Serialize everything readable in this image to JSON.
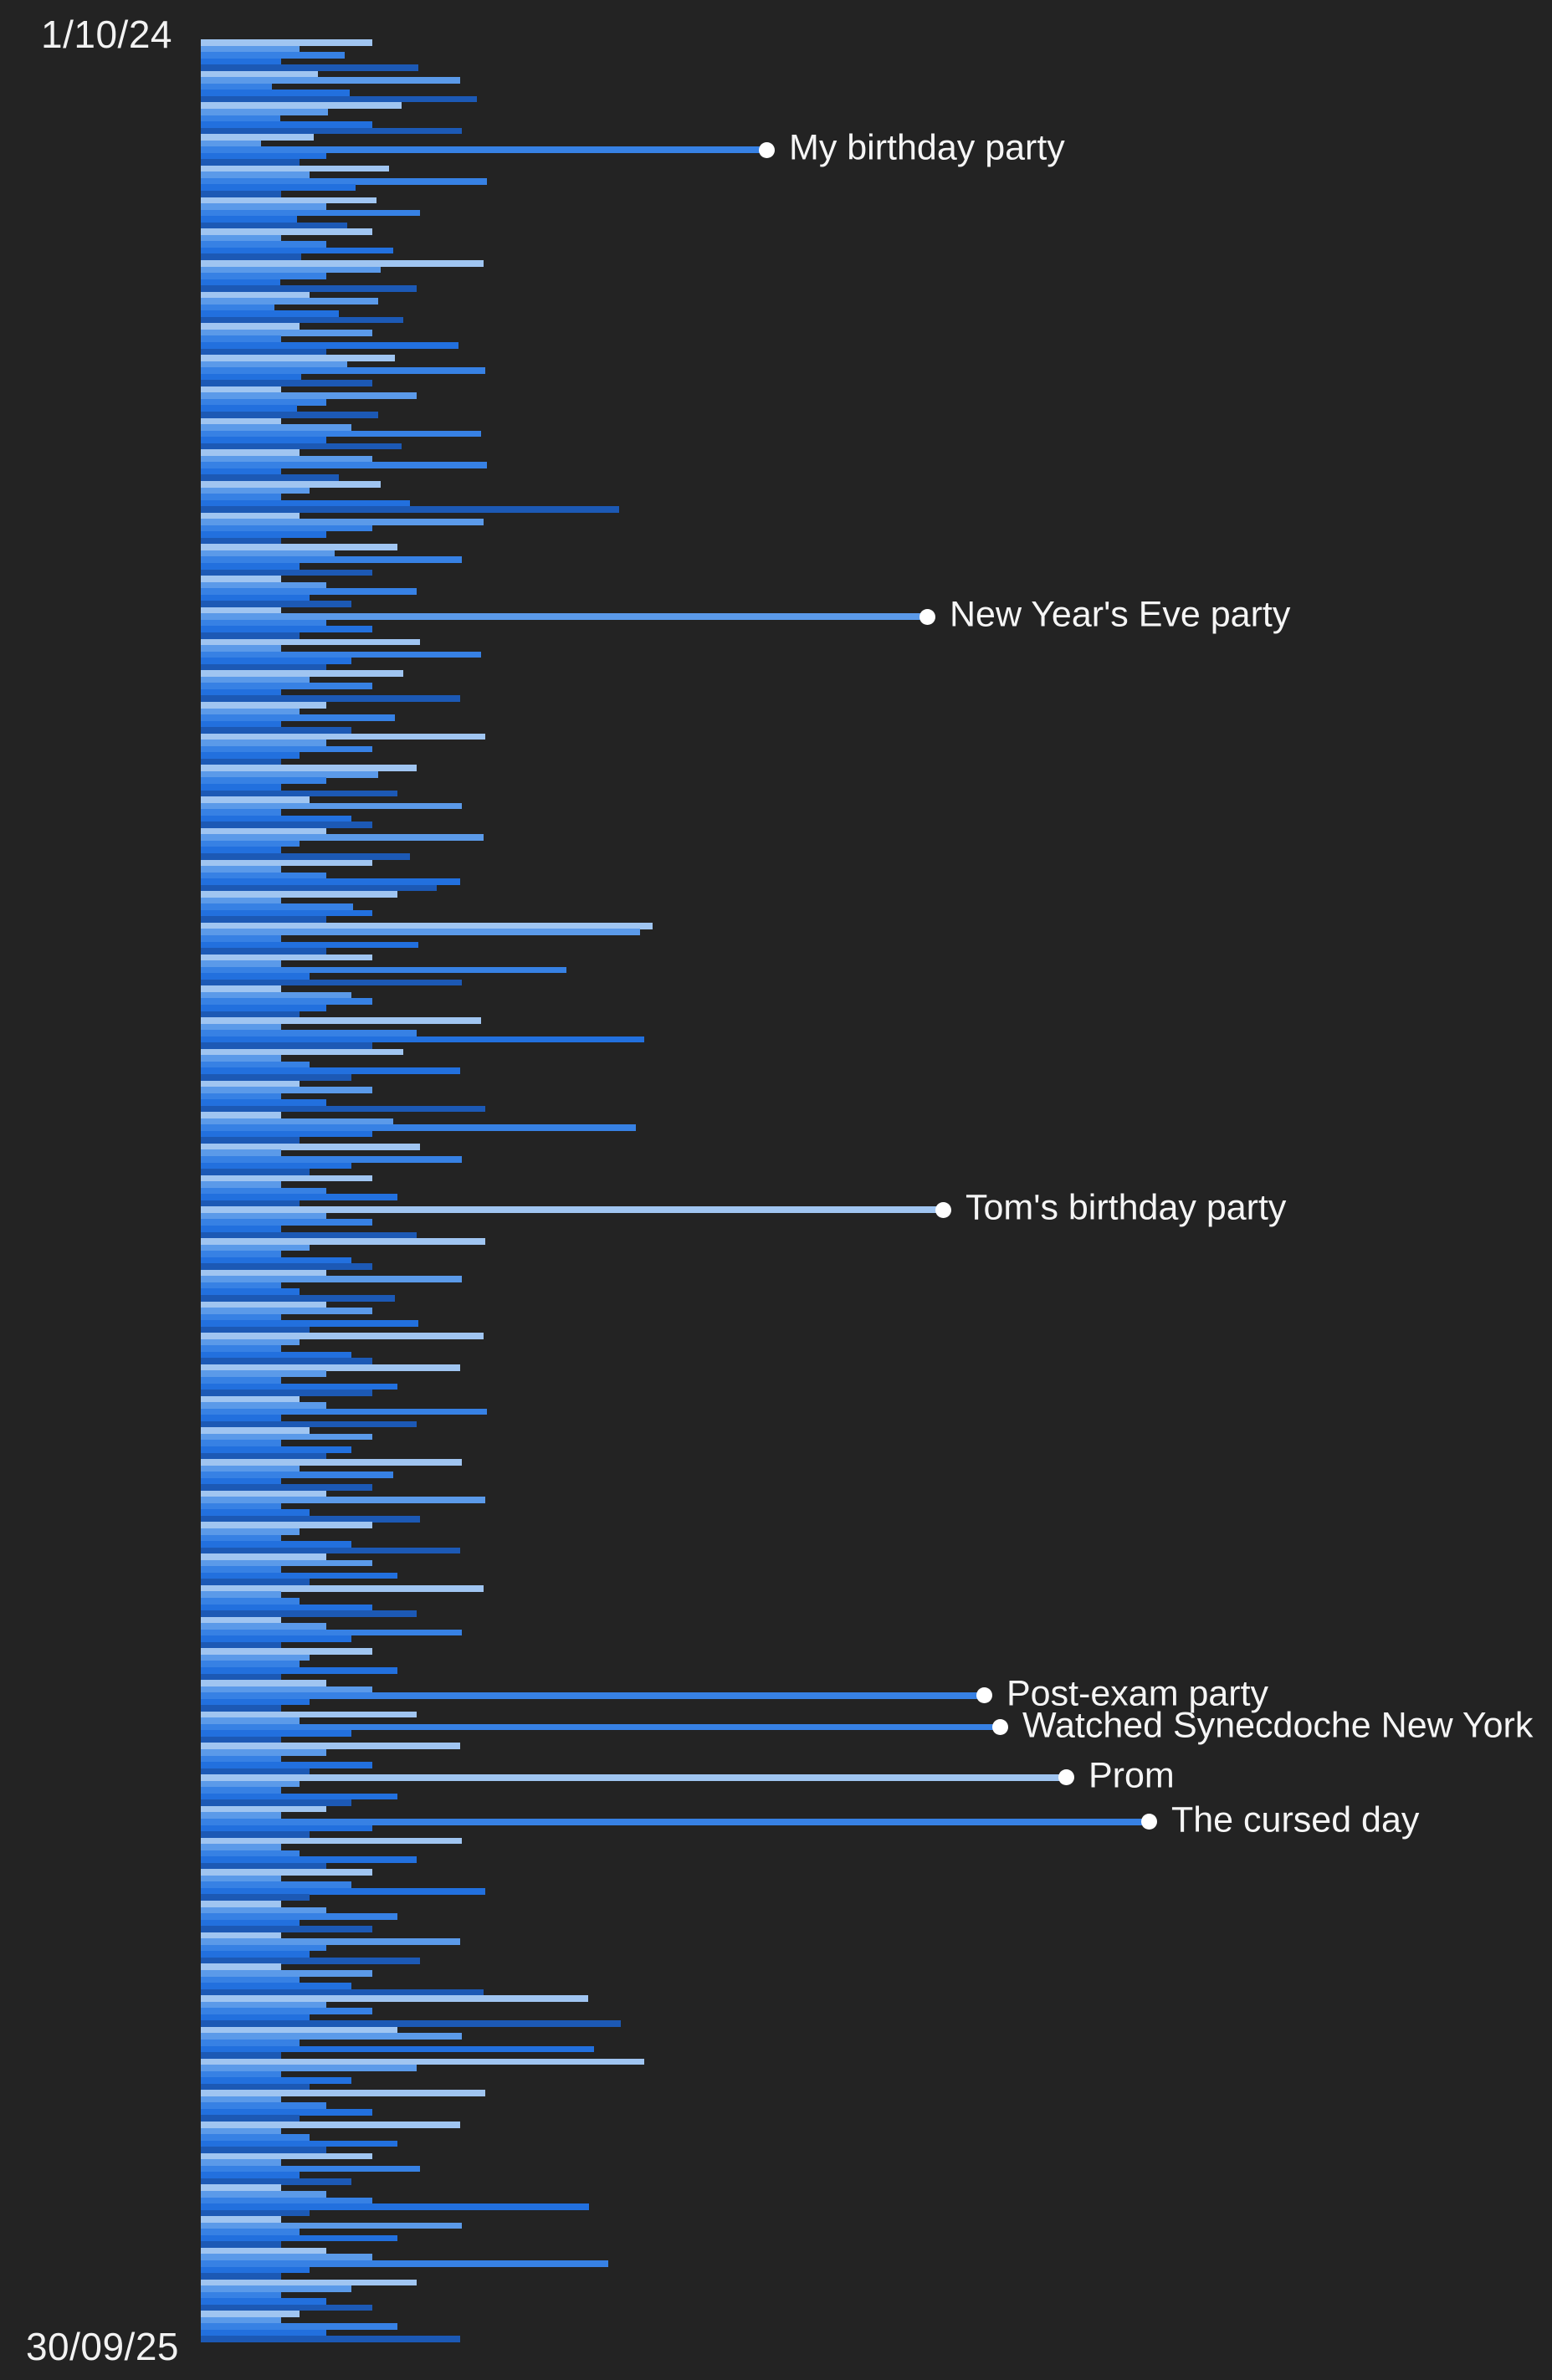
{
  "page": {
    "background_color": "#232323",
    "text_color": "#f2f2f2"
  },
  "axis": {
    "top_date": "1/10/24",
    "bottom_date": "30/09/25"
  },
  "chart_data": {
    "type": "bar",
    "orientation": "horizontal",
    "title": "",
    "xlabel": "",
    "ylabel": "",
    "grid": false,
    "legend": false,
    "y_axis": {
      "unit": "day",
      "start_date": "1/10/24",
      "end_date": "30/09/25",
      "tick_labels": [
        "1/10/24",
        "30/09/25"
      ],
      "num_days": 365
    },
    "x_axis": {
      "visible": false
    },
    "bar_color_cycle": [
      "#a0c5f1",
      "#5b9ae9",
      "#3781e4",
      "#2270de",
      "#1c59b5"
    ],
    "values": [
      205,
      118,
      172,
      96,
      260,
      140,
      310,
      85,
      178,
      330,
      240,
      152,
      95,
      205,
      312,
      135,
      72,
      676,
      150,
      118,
      225,
      130,
      342,
      185,
      96,
      210,
      150,
      262,
      115,
      175,
      205,
      96,
      150,
      230,
      120,
      338,
      215,
      150,
      95,
      258,
      130,
      212,
      88,
      165,
      242,
      118,
      205,
      96,
      308,
      150,
      232,
      175,
      340,
      120,
      205,
      96,
      258,
      150,
      115,
      212,
      96,
      180,
      335,
      150,
      240,
      118,
      205,
      342,
      96,
      165,
      215,
      130,
      96,
      250,
      500,
      118,
      338,
      205,
      150,
      96,
      235,
      160,
      312,
      118,
      205,
      96,
      150,
      258,
      130,
      180,
      96,
      868,
      150,
      205,
      118,
      262,
      96,
      335,
      180,
      150,
      242,
      130,
      205,
      96,
      310,
      150,
      118,
      232,
      96,
      180,
      340,
      150,
      205,
      118,
      96,
      258,
      212,
      150,
      96,
      235,
      130,
      312,
      96,
      180,
      205,
      150,
      338,
      118,
      96,
      250,
      205,
      96,
      150,
      310,
      282,
      235,
      96,
      182,
      205,
      150,
      540,
      525,
      96,
      260,
      150,
      205,
      96,
      437,
      130,
      312,
      96,
      180,
      205,
      150,
      118,
      335,
      96,
      258,
      530,
      205,
      242,
      96,
      130,
      310,
      180,
      118,
      205,
      96,
      150,
      340,
      96,
      230,
      520,
      205,
      118,
      262,
      96,
      312,
      180,
      130,
      205,
      96,
      150,
      235,
      118,
      887,
      150,
      205,
      96,
      258,
      340,
      130,
      96,
      180,
      205,
      150,
      312,
      96,
      118,
      232,
      150,
      205,
      96,
      260,
      130,
      338,
      118,
      96,
      180,
      205,
      310,
      150,
      96,
      235,
      205,
      118,
      150,
      342,
      96,
      258,
      130,
      205,
      96,
      180,
      150,
      312,
      118,
      230,
      96,
      205,
      150,
      340,
      96,
      130,
      262,
      205,
      118,
      96,
      180,
      310,
      150,
      205,
      96,
      235,
      130,
      338,
      96,
      118,
      205,
      258,
      96,
      150,
      312,
      180,
      96,
      205,
      130,
      118,
      235,
      96,
      150,
      205,
      936,
      130,
      96,
      258,
      118,
      955,
      180,
      96,
      310,
      150,
      96,
      205,
      130,
      1034,
      118,
      96,
      235,
      180,
      150,
      96,
      1133,
      205,
      130,
      312,
      96,
      118,
      258,
      150,
      205,
      96,
      180,
      340,
      130,
      96,
      150,
      235,
      118,
      205,
      96,
      310,
      150,
      130,
      262,
      96,
      205,
      118,
      180,
      338,
      463,
      150,
      205,
      130,
      502,
      235,
      312,
      118,
      470,
      96,
      530,
      258,
      96,
      180,
      130,
      340,
      96,
      150,
      205,
      118,
      310,
      96,
      130,
      235,
      150,
      205,
      96,
      262,
      118,
      180,
      96,
      150,
      205,
      464,
      130,
      96,
      312,
      118,
      235,
      96,
      150,
      205,
      487,
      130,
      96,
      258,
      180,
      96,
      150,
      205,
      118,
      96,
      235,
      150,
      310
    ],
    "annotations": [
      {
        "day_index": 17,
        "date": "18/10/24",
        "label": "My birthday party",
        "value": 676
      },
      {
        "day_index": 91,
        "date": "31/12/24",
        "label": "New Year's Eve party",
        "value": 868
      },
      {
        "day_index": 185,
        "date": "4/4/25",
        "label": "Tom's birthday party",
        "value": 887
      },
      {
        "day_index": 262,
        "date": "20/6/25",
        "label": "Post-exam party",
        "value": 936
      },
      {
        "day_index": 267,
        "date": "25/6/25",
        "label": "Watched Synecdoche New York",
        "value": 955
      },
      {
        "day_index": 275,
        "date": "3/7/25",
        "label": "Prom",
        "value": 1034
      },
      {
        "day_index": 282,
        "date": "10/7/25",
        "label": "The cursed day",
        "value": 1133
      }
    ]
  }
}
